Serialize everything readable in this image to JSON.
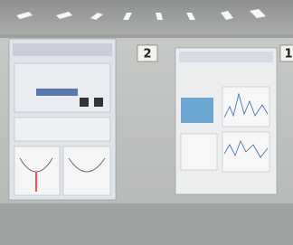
{
  "board_numbers": [
    "2",
    "1"
  ]
}
